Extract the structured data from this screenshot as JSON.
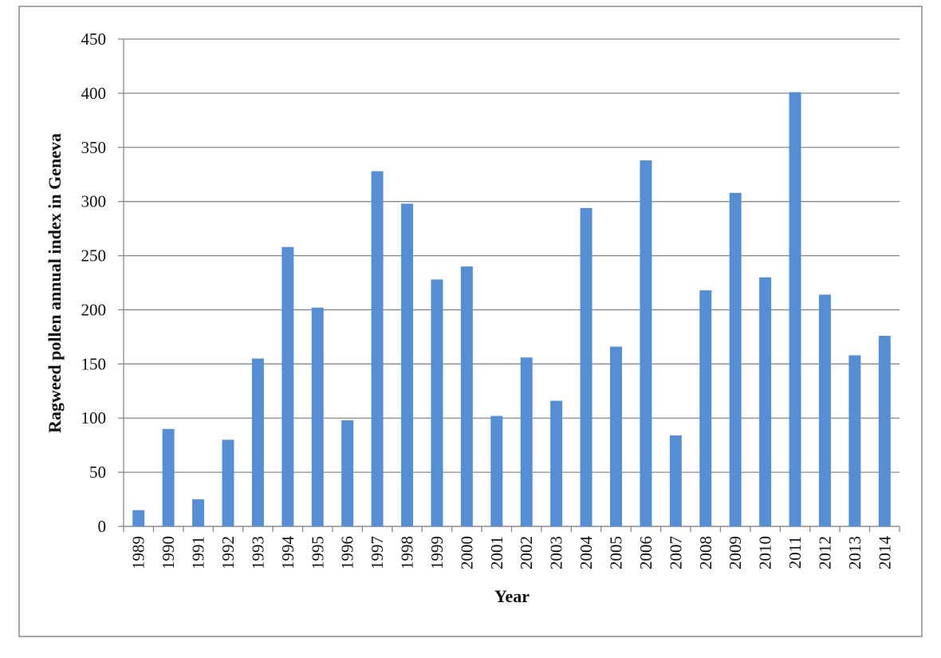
{
  "chart_data": {
    "type": "bar",
    "x_label": "Year",
    "y_label": "Ragweed pollen annual index in Geneva",
    "categories": [
      "1989",
      "1990",
      "1991",
      "1992",
      "1993",
      "1994",
      "1995",
      "1996",
      "1997",
      "1998",
      "1999",
      "2000",
      "2001",
      "2002",
      "2003",
      "2004",
      "2005",
      "2006",
      "2007",
      "2008",
      "2009",
      "2010",
      "2011",
      "2012",
      "2013",
      "2014"
    ],
    "values": [
      15,
      90,
      25,
      80,
      155,
      258,
      202,
      98,
      328,
      298,
      228,
      240,
      102,
      156,
      116,
      294,
      166,
      338,
      84,
      218,
      308,
      230,
      401,
      214,
      158,
      176
    ],
    "color": "#558ed5",
    "ylim": [
      0,
      450
    ],
    "yticks": [
      0,
      50,
      100,
      150,
      200,
      250,
      300,
      350,
      400,
      450
    ],
    "grid": true
  }
}
